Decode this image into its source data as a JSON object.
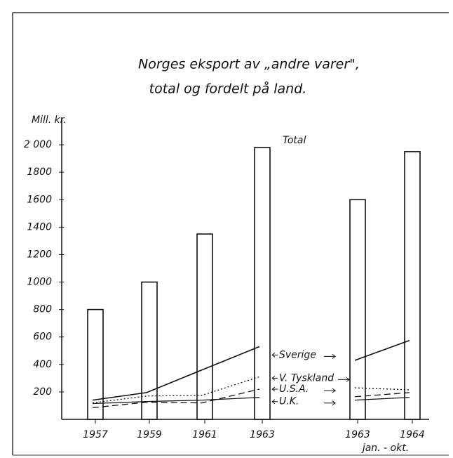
{
  "chart_data": {
    "type": "bar",
    "title": "Norges eksport av „andre varer\",",
    "subtitle": "total og fordelt på land.",
    "y_label": "Mill. kr.",
    "bar_label": "Total",
    "period_note": "jan. - okt.",
    "categories": [
      "1957",
      "1959",
      "1961",
      "1963",
      null,
      "1963",
      "1964"
    ],
    "values": [
      800,
      1000,
      1350,
      1980,
      null,
      1600,
      1950
    ],
    "color": "#ffffff",
    "ylim": [
      0,
      2200
    ],
    "yticks": [
      200,
      400,
      600,
      800,
      1000,
      1200,
      1400,
      1600,
      1800,
      {
        "value": 2000,
        "label": "2 000"
      }
    ],
    "series": [
      {
        "name": "Sverige",
        "color": "#111111",
        "style": "solid",
        "values": [
          140,
          195,
          360,
          530,
          null,
          430,
          575
        ]
      },
      {
        "name": "V. Tyskland",
        "color": "#111111",
        "style": "dotted",
        "values": [
          120,
          170,
          175,
          310,
          null,
          230,
          215
        ]
      },
      {
        "name": "U.S.A.",
        "color": "#111111",
        "style": "dashed",
        "values": [
          85,
          125,
          120,
          220,
          null,
          165,
          195
        ]
      },
      {
        "name": "U.K.",
        "color": "#111111",
        "style": "solid",
        "values": [
          115,
          130,
          140,
          160,
          null,
          140,
          160
        ]
      }
    ]
  }
}
